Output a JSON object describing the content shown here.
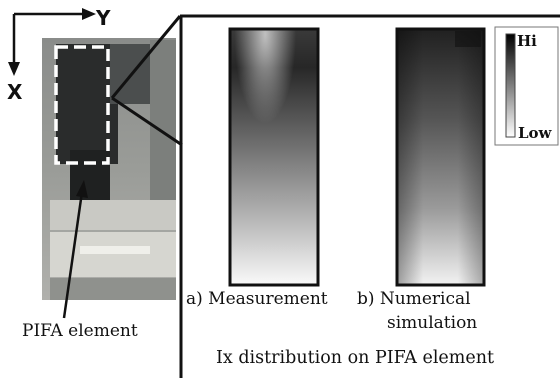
{
  "axes": {
    "x_label": "X",
    "y_label": "Y"
  },
  "photo": {
    "callout": "PIFA element"
  },
  "panels": {
    "a_caption": "a) Measurement",
    "b_caption_line1": "b) Numerical",
    "b_caption_line2": "simulation",
    "title": "Ix distribution on PIFA element"
  },
  "legend": {
    "high": "Hi",
    "low": "Low"
  }
}
